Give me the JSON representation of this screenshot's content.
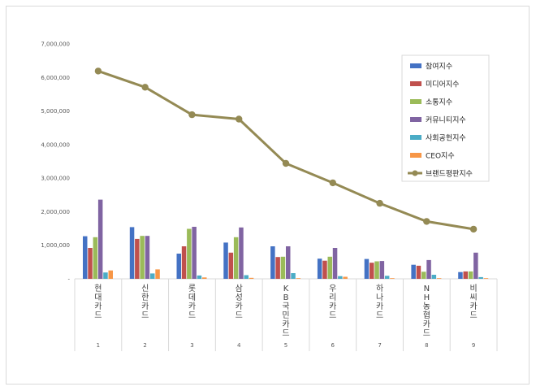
{
  "chart_data": {
    "type": "bar",
    "title": "",
    "xlabel": "",
    "ylabel": "",
    "ylim": [
      0,
      7000000
    ],
    "y_ticks": [
      "-",
      "1,000,000",
      "2,000,000",
      "3,000,000",
      "4,000,000",
      "5,000,000",
      "6,000,000",
      "7,000,000"
    ],
    "categories": [
      "현대카드",
      "신한카드",
      "롯데카드",
      "삼성카드",
      "KB국민카드",
      "우리카드",
      "하나카드",
      "NH농협카드",
      "비씨카드"
    ],
    "category_index": [
      "1",
      "2",
      "3",
      "4",
      "5",
      "6",
      "7",
      "8",
      "9"
    ],
    "series": [
      {
        "name": "참여지수",
        "color": "#4472c4",
        "type": "bar",
        "values": [
          1270000,
          1540000,
          750000,
          1080000,
          970000,
          600000,
          590000,
          420000,
          200000
        ]
      },
      {
        "name": "미디어지수",
        "color": "#c0504d",
        "type": "bar",
        "values": [
          920000,
          1190000,
          970000,
          780000,
          650000,
          540000,
          480000,
          390000,
          220000
        ]
      },
      {
        "name": "소통지수",
        "color": "#9bbb59",
        "type": "bar",
        "values": [
          1240000,
          1280000,
          1490000,
          1240000,
          660000,
          660000,
          520000,
          210000,
          220000
        ]
      },
      {
        "name": "커뮤니티지수",
        "color": "#8064a2",
        "type": "bar",
        "values": [
          2360000,
          1280000,
          1550000,
          1530000,
          970000,
          920000,
          530000,
          560000,
          780000
        ]
      },
      {
        "name": "사회공헌지수",
        "color": "#4bacc6",
        "type": "bar",
        "values": [
          190000,
          160000,
          100000,
          110000,
          170000,
          80000,
          90000,
          120000,
          50000
        ]
      },
      {
        "name": "CEO지수",
        "color": "#f79646",
        "type": "bar",
        "values": [
          250000,
          280000,
          40000,
          30000,
          20000,
          60000,
          20000,
          20000,
          20000
        ]
      },
      {
        "name": "브랜드평판지수",
        "color": "#948a54",
        "type": "line",
        "values": [
          6190000,
          5710000,
          4890000,
          4760000,
          3440000,
          2860000,
          2250000,
          1710000,
          1480000
        ]
      }
    ]
  }
}
